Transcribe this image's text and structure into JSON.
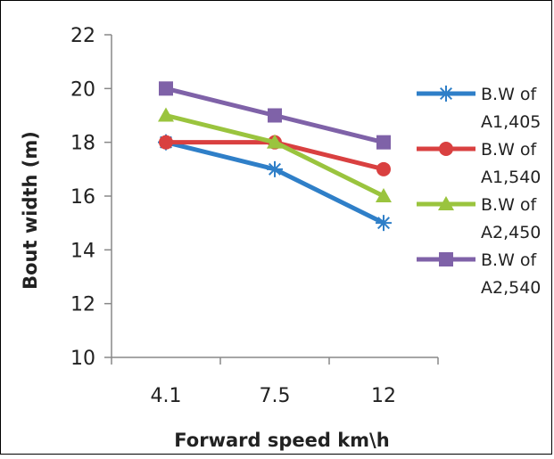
{
  "chart_data": {
    "type": "line",
    "title": "",
    "xlabel": "Forward speed km\\h",
    "ylabel": "Bout width  (m)",
    "categories": [
      "4.1",
      "7.5",
      "12"
    ],
    "ylim": [
      10,
      22
    ],
    "yticks": [
      "10",
      "12",
      "14",
      "16",
      "18",
      "20",
      "22"
    ],
    "grid": false,
    "legend_position": "right",
    "series": [
      {
        "name_line1": "B.W of",
        "name_line2": "A1,405",
        "color": "#2f7fc8",
        "marker": "asterisk",
        "values": [
          18,
          17,
          15
        ]
      },
      {
        "name_line1": "B.W of",
        "name_line2": "A1,540",
        "color": "#d94040",
        "marker": "circle",
        "values": [
          18,
          18,
          17
        ]
      },
      {
        "name_line1": "B.W of",
        "name_line2": "A2,450",
        "color": "#9ac43e",
        "marker": "triangle",
        "values": [
          19,
          18,
          16
        ]
      },
      {
        "name_line1": "B.W of",
        "name_line2": "A2,540",
        "color": "#7f62a8",
        "marker": "square",
        "values": [
          20,
          19,
          18
        ]
      }
    ]
  }
}
